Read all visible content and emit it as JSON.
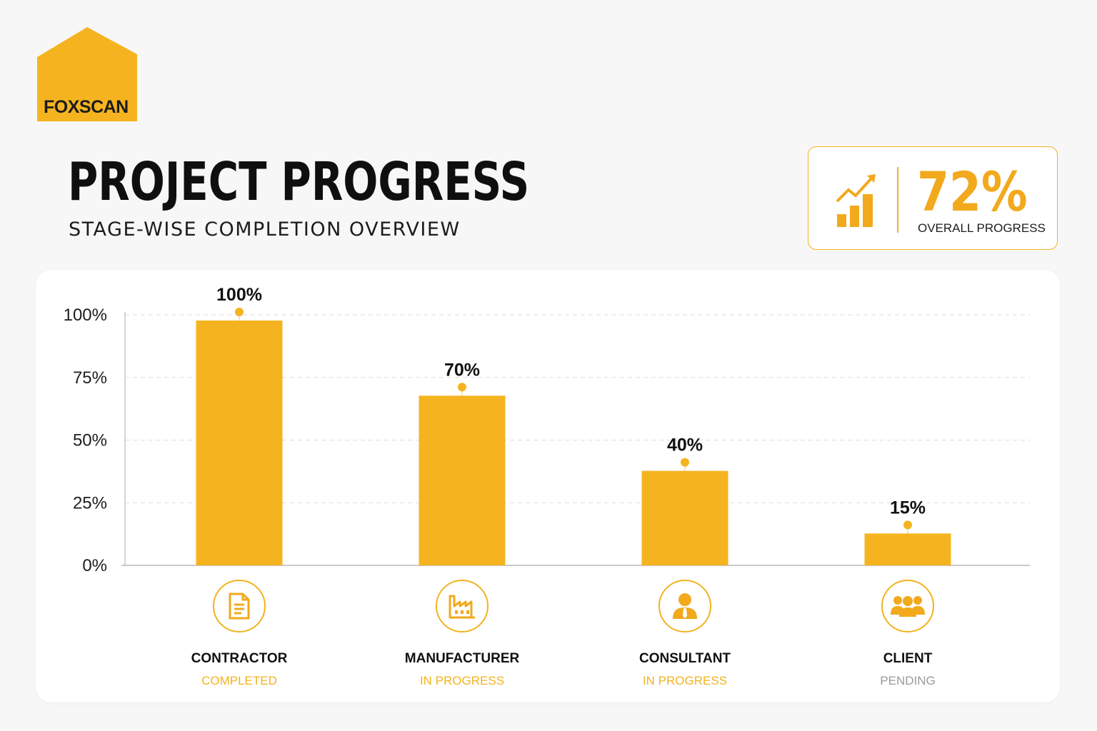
{
  "brand": {
    "name": "FOXSCAN",
    "logo_icon": "house-logo-icon",
    "color": "#f2b31e"
  },
  "header": {
    "title": "PROJECT PROGRESS",
    "subtitle": "STAGE-WISE COMPLETION OVERVIEW"
  },
  "kpi": {
    "value": "72%",
    "label": "OVERALL PROGRESS",
    "icon": "trend-up-chart-icon"
  },
  "stages": [
    {
      "name": "CONTRACTOR",
      "status": "COMPLETED",
      "status_color": "#f2b31e",
      "icon": "document-icon"
    },
    {
      "name": "MANUFACTURER",
      "status": "IN PROGRESS",
      "status_color": "#f2b31e",
      "icon": "factory-icon"
    },
    {
      "name": "CONSULTANT",
      "status": "IN PROGRESS",
      "status_color": "#f2b31e",
      "icon": "person-icon"
    },
    {
      "name": "CLIENT",
      "status": "PENDING",
      "status_color": "#9a9a9a",
      "icon": "group-icon"
    }
  ],
  "chart_data": {
    "type": "bar",
    "categories": [
      "CONTRACTOR",
      "MANUFACTURER",
      "CONSULTANT",
      "CLIENT"
    ],
    "values": [
      100,
      70,
      40,
      15
    ],
    "data_labels": [
      "100%",
      "70%",
      "40%",
      "15%"
    ],
    "y_ticks": [
      "0%",
      "25%",
      "50%",
      "75%",
      "100%"
    ],
    "ylim": [
      0,
      100
    ],
    "grid": true,
    "bar_color": "#f5b41f"
  }
}
